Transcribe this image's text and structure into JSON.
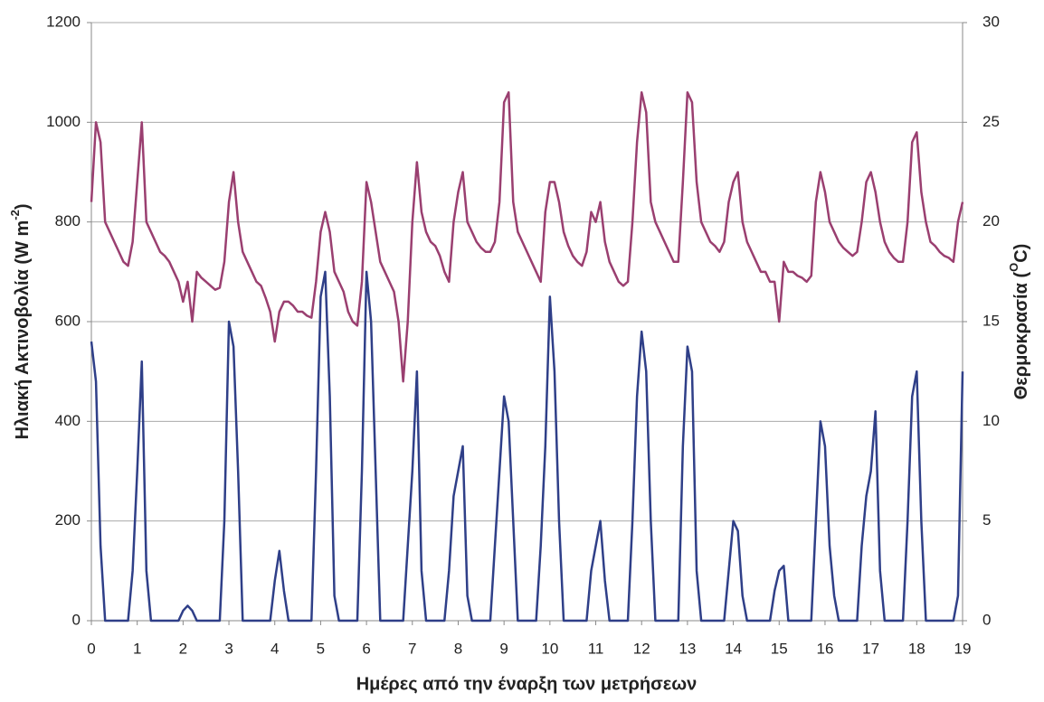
{
  "chart_data": {
    "type": "line",
    "x_label": "Ημέρες από την έναρξη των μετρήσεων",
    "y_label": {
      "text": "Ηλιακή Ακτινοβολία (W m",
      "sup": "-2",
      "end": ")"
    },
    "y2_label": {
      "text": "Θερμοκρασία (",
      "sup": "O",
      "end": "C)"
    },
    "xlim": [
      0,
      19
    ],
    "xticks": [
      0,
      1,
      2,
      3,
      4,
      5,
      6,
      7,
      8,
      9,
      10,
      11,
      12,
      13,
      14,
      15,
      16,
      17,
      18,
      19
    ],
    "ylim": [
      0,
      1200
    ],
    "yticks": [
      0,
      200,
      400,
      600,
      800,
      1000,
      1200
    ],
    "y2lim": [
      0,
      30
    ],
    "y2ticks": [
      0,
      5,
      10,
      15,
      20,
      25,
      30
    ],
    "grid": true,
    "x": [
      0,
      0.1,
      0.2,
      0.3,
      0.4,
      0.5,
      0.6,
      0.7,
      0.8,
      0.9,
      1,
      1.1,
      1.2,
      1.3,
      1.4,
      1.5,
      1.6,
      1.7,
      1.8,
      1.9,
      2,
      2.1,
      2.2,
      2.3,
      2.4,
      2.5,
      2.6,
      2.7,
      2.8,
      2.9,
      3,
      3.1,
      3.2,
      3.3,
      3.4,
      3.5,
      3.6,
      3.7,
      3.8,
      3.9,
      4,
      4.1,
      4.2,
      4.3,
      4.4,
      4.5,
      4.6,
      4.7,
      4.8,
      4.9,
      5,
      5.1,
      5.2,
      5.3,
      5.4,
      5.5,
      5.6,
      5.7,
      5.8,
      5.9,
      6,
      6.1,
      6.2,
      6.3,
      6.4,
      6.5,
      6.6,
      6.7,
      6.8,
      6.9,
      7,
      7.1,
      7.2,
      7.3,
      7.4,
      7.5,
      7.6,
      7.7,
      7.8,
      7.9,
      8,
      8.1,
      8.2,
      8.3,
      8.4,
      8.5,
      8.6,
      8.7,
      8.8,
      8.9,
      9,
      9.1,
      9.2,
      9.3,
      9.4,
      9.5,
      9.6,
      9.7,
      9.8,
      9.9,
      10,
      10.1,
      10.2,
      10.3,
      10.4,
      10.5,
      10.6,
      10.7,
      10.8,
      10.9,
      11,
      11.1,
      11.2,
      11.3,
      11.4,
      11.5,
      11.6,
      11.7,
      11.8,
      11.9,
      12,
      12.1,
      12.2,
      12.3,
      12.4,
      12.5,
      12.6,
      12.7,
      12.8,
      12.9,
      13,
      13.1,
      13.2,
      13.3,
      13.4,
      13.5,
      13.6,
      13.7,
      13.8,
      13.9,
      14,
      14.1,
      14.2,
      14.3,
      14.4,
      14.5,
      14.6,
      14.7,
      14.8,
      14.9,
      15,
      15.1,
      15.2,
      15.3,
      15.4,
      15.5,
      15.6,
      15.7,
      15.8,
      15.9,
      16,
      16.1,
      16.2,
      16.3,
      16.4,
      16.5,
      16.6,
      16.7,
      16.8,
      16.9,
      17,
      17.1,
      17.2,
      17.3,
      17.4,
      17.5,
      17.6,
      17.7,
      17.8,
      17.9,
      18,
      18.1,
      18.2,
      18.3,
      18.4,
      18.5,
      18.6,
      18.7,
      18.8,
      18.9,
      19
    ],
    "series": [
      {
        "color": "#2f3f88",
        "values": [
          560,
          480,
          150,
          0,
          0,
          0,
          0,
          0,
          0,
          100,
          300,
          520,
          100,
          0,
          0,
          0,
          0,
          0,
          0,
          0,
          20,
          30,
          20,
          0,
          0,
          0,
          0,
          0,
          0,
          200,
          600,
          550,
          300,
          0,
          0,
          0,
          0,
          0,
          0,
          0,
          80,
          140,
          60,
          0,
          0,
          0,
          0,
          0,
          0,
          300,
          650,
          700,
          450,
          50,
          0,
          0,
          0,
          0,
          0,
          300,
          700,
          600,
          300,
          0,
          0,
          0,
          0,
          0,
          0,
          150,
          300,
          500,
          100,
          0,
          0,
          0,
          0,
          0,
          100,
          250,
          300,
          350,
          50,
          0,
          0,
          0,
          0,
          0,
          150,
          300,
          450,
          400,
          200,
          0,
          0,
          0,
          0,
          0,
          150,
          350,
          650,
          500,
          200,
          0,
          0,
          0,
          0,
          0,
          0,
          100,
          150,
          200,
          80,
          0,
          0,
          0,
          0,
          0,
          200,
          450,
          580,
          500,
          200,
          0,
          0,
          0,
          0,
          0,
          0,
          350,
          550,
          500,
          100,
          0,
          0,
          0,
          0,
          0,
          0,
          100,
          200,
          180,
          50,
          0,
          0,
          0,
          0,
          0,
          0,
          60,
          100,
          110,
          0,
          0,
          0,
          0,
          0,
          0,
          200,
          400,
          350,
          150,
          50,
          0,
          0,
          0,
          0,
          0,
          150,
          250,
          300,
          420,
          100,
          0,
          0,
          0,
          0,
          0,
          200,
          450,
          500,
          200,
          0,
          0,
          0,
          0,
          0,
          0,
          0,
          50,
          500
        ]
      },
      {
        "color": "#9a3f70",
        "axis": "y2",
        "values": [
          21,
          25,
          24,
          20,
          19.5,
          19,
          18.5,
          18,
          17.8,
          19,
          22,
          25,
          20,
          19.5,
          19,
          18.5,
          18.3,
          18,
          17.5,
          17,
          16,
          17,
          15,
          17.5,
          17.2,
          17,
          16.8,
          16.6,
          16.7,
          18,
          21,
          22.5,
          20,
          18.5,
          18,
          17.5,
          17,
          16.8,
          16.2,
          15.5,
          14,
          15.5,
          16,
          16,
          15.8,
          15.5,
          15.5,
          15.3,
          15.2,
          17,
          19.5,
          20.5,
          19.5,
          17.5,
          17,
          16.5,
          15.5,
          15,
          14.8,
          17,
          22,
          21,
          19.5,
          18,
          17.5,
          17,
          16.5,
          15,
          12,
          15,
          20,
          23,
          20.5,
          19.5,
          19,
          18.8,
          18.3,
          17.5,
          17,
          20,
          21.5,
          22.5,
          20,
          19.5,
          19,
          18.7,
          18.5,
          18.5,
          19,
          21,
          26,
          26.5,
          21,
          19.5,
          19,
          18.5,
          18,
          17.5,
          17,
          20.5,
          22,
          22,
          21,
          19.5,
          18.8,
          18.3,
          18,
          17.8,
          18.5,
          20.5,
          20,
          21,
          19,
          18,
          17.5,
          17,
          16.8,
          17,
          20,
          24,
          26.5,
          25.5,
          21,
          20,
          19.5,
          19,
          18.5,
          18,
          18,
          22,
          26.5,
          26,
          22,
          20,
          19.5,
          19,
          18.8,
          18.5,
          19,
          21,
          22,
          22.5,
          20,
          19,
          18.5,
          18,
          17.5,
          17.5,
          17,
          17,
          15,
          18,
          17.5,
          17.5,
          17.3,
          17.2,
          17,
          17.3,
          21,
          22.5,
          21.5,
          20,
          19.5,
          19,
          18.7,
          18.5,
          18.3,
          18.5,
          20,
          22,
          22.5,
          21.5,
          20,
          19,
          18.5,
          18.2,
          18,
          18,
          20,
          24,
          24.5,
          21.5,
          20,
          19,
          18.8,
          18.5,
          18.3,
          18.2,
          18,
          20,
          21
        ]
      }
    ]
  }
}
